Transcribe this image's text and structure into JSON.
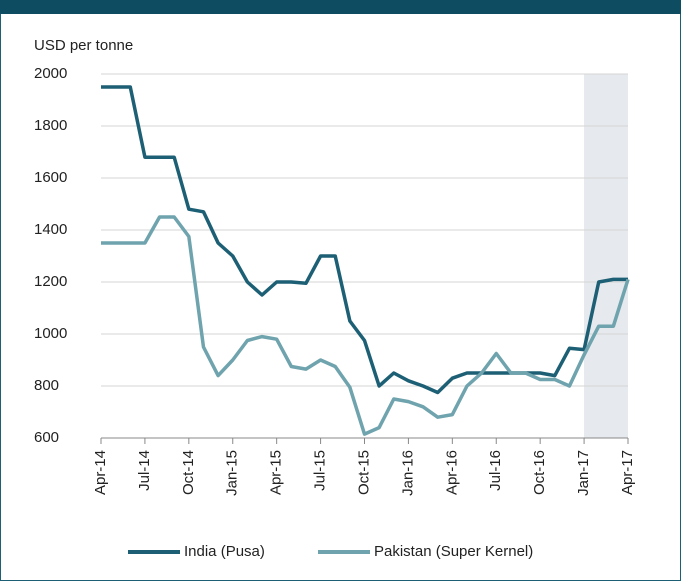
{
  "chart_data": {
    "type": "line",
    "y_label": "USD per tonne",
    "categories": [
      "Apr-14",
      null,
      null,
      "Jul-14",
      null,
      null,
      "Oct-14",
      null,
      null,
      "Jan-15",
      null,
      null,
      "Apr-15",
      null,
      null,
      "Jul-15",
      null,
      null,
      "Oct-15",
      null,
      null,
      "Jan-16",
      null,
      null,
      "Apr-16",
      null,
      null,
      "Jul-16",
      null,
      null,
      "Oct-16",
      null,
      null,
      "Jan-17",
      null,
      null,
      "Apr-17"
    ],
    "series": [
      {
        "name": "India (Pusa)",
        "color": "#1d5f74",
        "values": [
          1950,
          1950,
          1950,
          1680,
          1680,
          1680,
          1480,
          1470,
          1350,
          1300,
          1200,
          1150,
          1200,
          1200,
          1195,
          1300,
          1300,
          1050,
          975,
          800,
          850,
          820,
          800,
          775,
          830,
          850,
          850,
          850,
          850,
          850,
          850,
          840,
          945,
          940,
          1200,
          1210,
          1210
        ]
      },
      {
        "name": "Pakistan (Super Kernel)",
        "color": "#6fa3ad",
        "values": [
          1350,
          1350,
          1350,
          1350,
          1450,
          1450,
          1375,
          950,
          840,
          900,
          975,
          990,
          980,
          875,
          865,
          900,
          875,
          795,
          615,
          640,
          750,
          740,
          720,
          680,
          690,
          800,
          850,
          925,
          850,
          850,
          825,
          825,
          800,
          920,
          1030,
          1030,
          1210
        ]
      }
    ],
    "ylim": [
      600,
      2000
    ],
    "yticks": [
      600,
      800,
      1000,
      1200,
      1400,
      1600,
      1800,
      2000
    ],
    "grid": true
  }
}
